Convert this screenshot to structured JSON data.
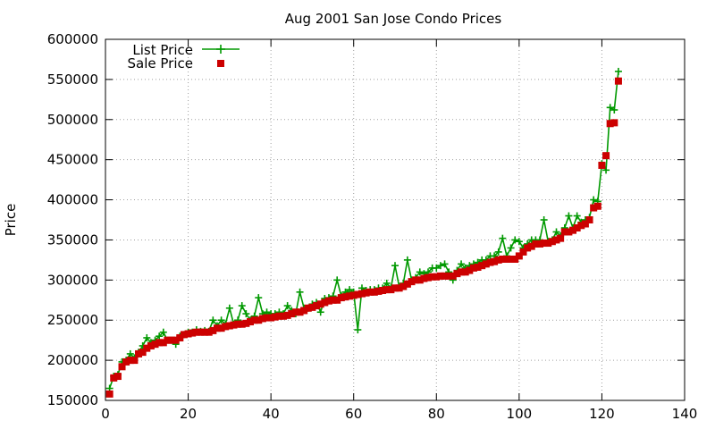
{
  "chart_data": {
    "type": "line",
    "title": "Aug 2001 San Jose Condo Prices",
    "xlabel": "",
    "ylabel": "Price",
    "xlim": [
      0,
      140
    ],
    "ylim": [
      150000,
      600000
    ],
    "xticks": [
      0,
      20,
      40,
      60,
      80,
      100,
      120,
      140
    ],
    "yticks": [
      150000,
      200000,
      250000,
      300000,
      350000,
      400000,
      450000,
      500000,
      550000,
      600000
    ],
    "xtick_labels": [
      "0",
      "20",
      "40",
      "60",
      "80",
      "100",
      "120",
      "140"
    ],
    "ytick_labels": [
      "150000",
      "200000",
      "250000",
      "300000",
      "350000",
      "400000",
      "450000",
      "500000",
      "550000",
      "600000"
    ],
    "legend_position": "top-left",
    "series": [
      {
        "name": "List Price",
        "style": "linespoints",
        "marker": "plus",
        "color": "#009900",
        "x": [
          1,
          2,
          3,
          4,
          5,
          6,
          7,
          8,
          9,
          10,
          11,
          12,
          13,
          14,
          15,
          16,
          17,
          18,
          19,
          20,
          21,
          22,
          23,
          24,
          25,
          26,
          27,
          28,
          29,
          30,
          31,
          32,
          33,
          34,
          35,
          36,
          37,
          38,
          39,
          40,
          41,
          42,
          43,
          44,
          45,
          46,
          47,
          48,
          49,
          50,
          51,
          52,
          53,
          54,
          55,
          56,
          57,
          58,
          59,
          60,
          61,
          62,
          63,
          64,
          65,
          66,
          67,
          68,
          69,
          70,
          71,
          72,
          73,
          74,
          75,
          76,
          77,
          78,
          79,
          80,
          81,
          82,
          83,
          84,
          85,
          86,
          87,
          88,
          89,
          90,
          91,
          92,
          93,
          94,
          95,
          96,
          97,
          98,
          99,
          100,
          101,
          102,
          103,
          104,
          105,
          106,
          107,
          108,
          109,
          110,
          111,
          112,
          113,
          114,
          115,
          116,
          117,
          118,
          119,
          120,
          121,
          122,
          123,
          124
        ],
        "y": [
          165000,
          180000,
          182000,
          198000,
          200000,
          208000,
          203000,
          210000,
          218000,
          228000,
          222000,
          225000,
          230000,
          235000,
          225000,
          225000,
          220000,
          230000,
          232000,
          235000,
          235000,
          238000,
          236000,
          237000,
          236000,
          250000,
          243000,
          250000,
          245000,
          265000,
          245000,
          250000,
          268000,
          258000,
          250000,
          255000,
          278000,
          258000,
          260000,
          258000,
          258000,
          260000,
          258000,
          268000,
          262000,
          258000,
          285000,
          265000,
          265000,
          270000,
          272000,
          260000,
          277000,
          278000,
          280000,
          300000,
          280000,
          285000,
          288000,
          285000,
          238000,
          290000,
          287000,
          288000,
          288000,
          290000,
          290000,
          296000,
          290000,
          318000,
          292000,
          296000,
          325000,
          300000,
          303000,
          310000,
          308000,
          310000,
          315000,
          315000,
          318000,
          320000,
          310000,
          300000,
          312000,
          320000,
          315000,
          318000,
          320000,
          322000,
          325000,
          325000,
          330000,
          330000,
          335000,
          352000,
          330000,
          340000,
          350000,
          348000,
          340000,
          345000,
          350000,
          350000,
          350000,
          375000,
          348000,
          350000,
          360000,
          355000,
          365000,
          380000,
          365000,
          380000,
          372000,
          375000,
          378000,
          400000,
          398000,
          445000,
          437000,
          515000,
          512000,
          560000
        ]
      },
      {
        "name": "Sale Price",
        "style": "points",
        "marker": "square",
        "color": "#cc0000",
        "x": [
          1,
          2,
          3,
          4,
          5,
          6,
          7,
          8,
          9,
          10,
          11,
          12,
          13,
          14,
          15,
          16,
          17,
          18,
          19,
          20,
          21,
          22,
          23,
          24,
          25,
          26,
          27,
          28,
          29,
          30,
          31,
          32,
          33,
          34,
          35,
          36,
          37,
          38,
          39,
          40,
          41,
          42,
          43,
          44,
          45,
          46,
          47,
          48,
          49,
          50,
          51,
          52,
          53,
          54,
          55,
          56,
          57,
          58,
          59,
          60,
          61,
          62,
          63,
          64,
          65,
          66,
          67,
          68,
          69,
          70,
          71,
          72,
          73,
          74,
          75,
          76,
          77,
          78,
          79,
          80,
          81,
          82,
          83,
          84,
          85,
          86,
          87,
          88,
          89,
          90,
          91,
          92,
          93,
          94,
          95,
          96,
          97,
          98,
          99,
          100,
          101,
          102,
          103,
          104,
          105,
          106,
          107,
          108,
          109,
          110,
          111,
          112,
          113,
          114,
          115,
          116,
          117,
          118,
          119,
          120,
          121,
          122,
          123,
          124
        ],
        "y": [
          158000,
          178000,
          180000,
          192000,
          198000,
          200000,
          200000,
          208000,
          210000,
          215000,
          218000,
          220000,
          222000,
          222000,
          225000,
          225000,
          225000,
          228000,
          232000,
          233000,
          234000,
          235000,
          235000,
          235000,
          235000,
          237000,
          240000,
          240000,
          242000,
          243000,
          244000,
          245000,
          245000,
          246000,
          248000,
          250000,
          250000,
          252000,
          253000,
          253000,
          254000,
          255000,
          255000,
          256000,
          258000,
          260000,
          260000,
          262000,
          265000,
          266000,
          268000,
          270000,
          272000,
          274000,
          275000,
          275000,
          278000,
          279000,
          280000,
          281000,
          282000,
          283000,
          284000,
          285000,
          285000,
          286000,
          287000,
          288000,
          288000,
          290000,
          290000,
          292000,
          295000,
          298000,
          300000,
          300000,
          302000,
          303000,
          304000,
          304000,
          305000,
          305000,
          305000,
          305000,
          308000,
          310000,
          310000,
          312000,
          315000,
          316000,
          318000,
          320000,
          322000,
          323000,
          325000,
          326000,
          326000,
          326000,
          326000,
          330000,
          335000,
          340000,
          342000,
          345000,
          345000,
          346000,
          346000,
          348000,
          350000,
          352000,
          360000,
          360000,
          362000,
          365000,
          368000,
          370000,
          375000,
          390000,
          392000,
          443000,
          455000,
          495000,
          496000,
          548000
        ]
      }
    ]
  }
}
